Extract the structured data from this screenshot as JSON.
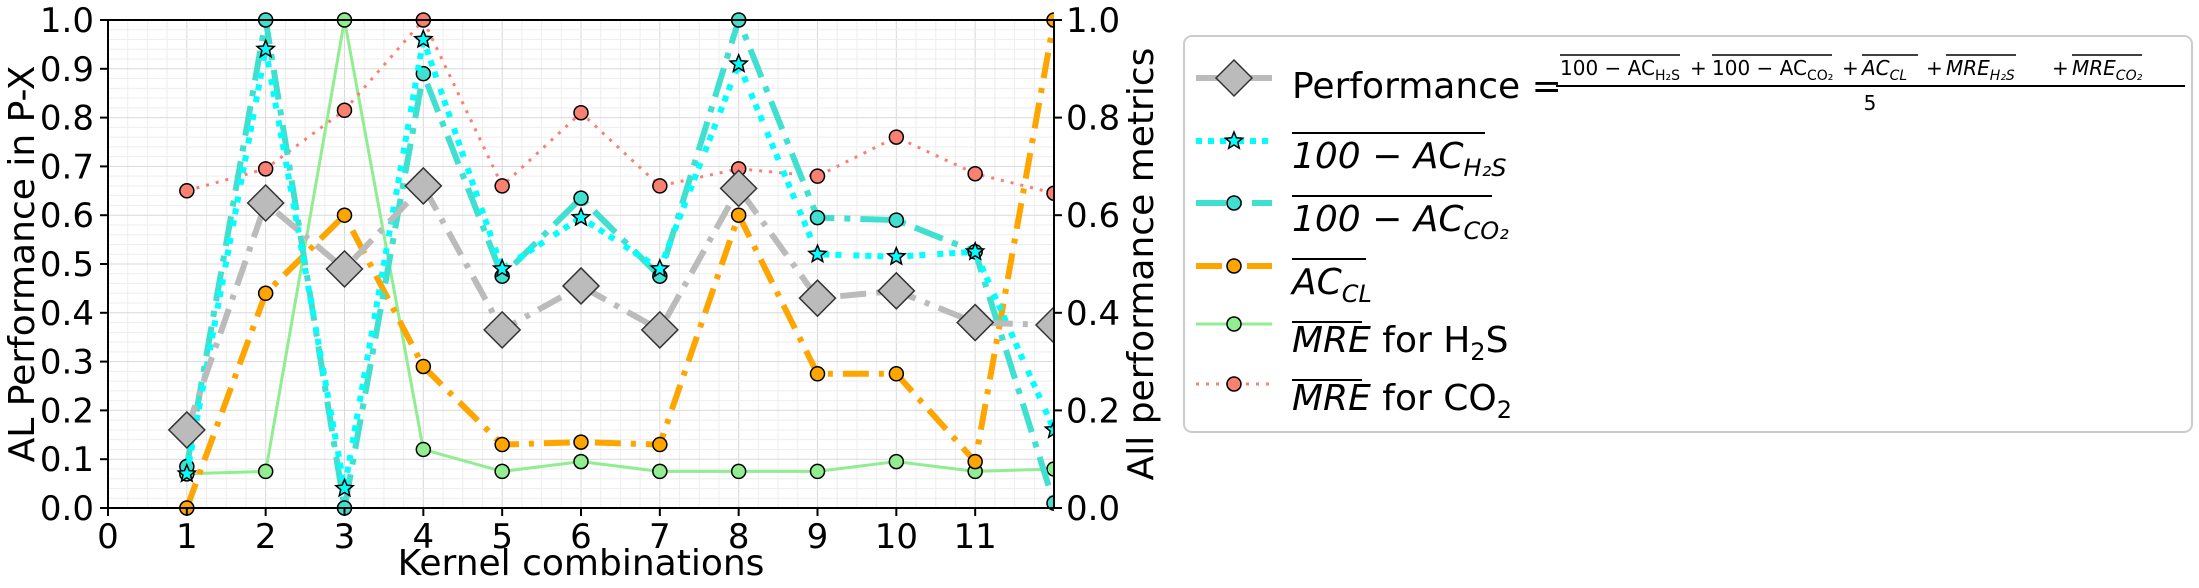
{
  "chart_data": {
    "type": "line",
    "xlabel": "Kernel combinations",
    "ylabel_left": "AL Performance in P-X",
    "ylabel_right": "All performance metrics",
    "x_ticks": [
      "0",
      "1",
      "2",
      "3",
      "4",
      "5",
      "6",
      "7",
      "8",
      "9",
      "10",
      "11"
    ],
    "y_ticks_left": [
      "0.0",
      "0.1",
      "0.2",
      "0.3",
      "0.4",
      "0.5",
      "0.6",
      "0.7",
      "0.8",
      "0.9",
      "1.0"
    ],
    "y_ticks_right": [
      "0.0",
      "0.2",
      "0.4",
      "0.6",
      "0.8",
      "1.0"
    ],
    "xlim": [
      0,
      12
    ],
    "ylim_left": [
      0,
      1
    ],
    "ylim_right": [
      0,
      1
    ],
    "grid": true,
    "legend_position": "right",
    "x": [
      1,
      2,
      3,
      4,
      5,
      6,
      7,
      8,
      9,
      10,
      11,
      12
    ],
    "series": [
      {
        "key": "performance",
        "legend": {
          "prefix": "Performance = ",
          "numerator": "100 − AC",
          "sub_h2s": "H₂S",
          "sub_co2": "CO₂",
          "formula_terms": [
            "100 − AC_H2S",
            "100 − AC_CO2",
            "AC_CL",
            "MRE_H2S",
            "MRE_CO2"
          ],
          "denominator": "5"
        },
        "values": [
          0.16,
          0.625,
          0.49,
          0.66,
          0.365,
          0.455,
          0.365,
          0.655,
          0.43,
          0.445,
          0.38,
          0.375
        ],
        "color": "#bbbbbb",
        "marker": "diamond",
        "dash": "26,10,5,10",
        "width": 6
      },
      {
        "key": "ac_h2s",
        "legend": {
          "main": "100 − AC",
          "sub": "H₂S"
        },
        "values": [
          0.07,
          0.94,
          0.04,
          0.96,
          0.49,
          0.595,
          0.49,
          0.91,
          0.52,
          0.515,
          0.525,
          0.16
        ],
        "color": "#00ffff",
        "marker": "star",
        "dash": "6,6,6,6,6,12",
        "width": 6
      },
      {
        "key": "ac_co2",
        "legend": {
          "main": "100 − AC",
          "sub": "CO₂"
        },
        "values": [
          0.085,
          1.0,
          0.0,
          0.89,
          0.475,
          0.635,
          0.475,
          1.0,
          0.595,
          0.59,
          0.525,
          0.01
        ],
        "color": "#40e0d0",
        "marker": "circle",
        "dash": "30,10,6,10",
        "width": 6
      },
      {
        "key": "ac_cl",
        "legend": {
          "main": "AC",
          "sub": "CL"
        },
        "values": [
          0.0,
          0.44,
          0.6,
          0.29,
          0.13,
          0.135,
          0.13,
          0.6,
          0.275,
          0.275,
          0.095,
          1.0
        ],
        "color": "#ffa500",
        "marker": "circle",
        "dash": "26,10,5,10",
        "width": 6
      },
      {
        "key": "mre_h2s",
        "legend": {
          "main": "MRE",
          "suffix": " for H",
          "sub": "2",
          "suffix2": "S"
        },
        "values": [
          0.07,
          0.075,
          1.0,
          0.12,
          0.075,
          0.095,
          0.075,
          0.075,
          0.075,
          0.095,
          0.075,
          0.08
        ],
        "color": "#90ee90",
        "marker": "circle",
        "dash": "",
        "width": 3
      },
      {
        "key": "mre_co2",
        "legend": {
          "main": "MRE",
          "suffix": " for CO",
          "sub": "2",
          "suffix2": ""
        },
        "values": [
          0.65,
          0.695,
          0.815,
          1.0,
          0.66,
          0.81,
          0.66,
          0.695,
          0.68,
          0.76,
          0.685,
          0.645
        ],
        "color": "#fa8072",
        "marker": "circle",
        "dash": "3,7",
        "width": 3
      }
    ]
  }
}
